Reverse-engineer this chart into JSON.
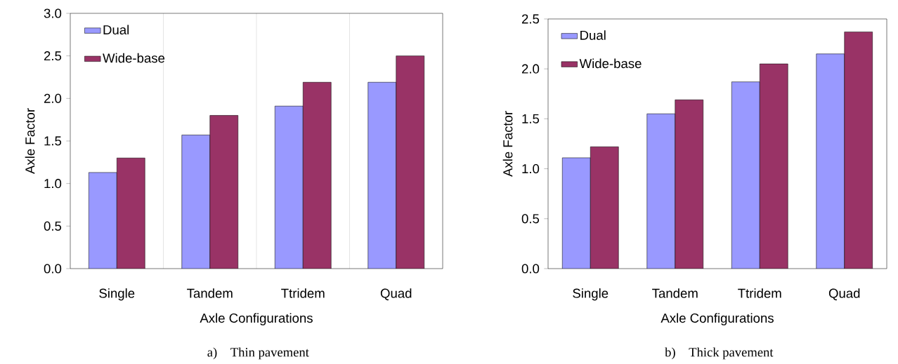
{
  "chart_data": [
    {
      "type": "bar",
      "categories": [
        "Single",
        "Tandem",
        "Ttridem",
        "Quad"
      ],
      "xlabel": "Axle Configurations",
      "ylabel": "Axle Factor",
      "series": [
        {
          "name": "Dual",
          "color": "#9999ff",
          "values": [
            1.13,
            1.57,
            1.91,
            2.19
          ]
        },
        {
          "name": "Wide-base",
          "color": "#993366",
          "values": [
            1.3,
            1.8,
            2.19,
            2.5
          ]
        }
      ],
      "ylim": [
        0,
        3
      ],
      "yticks": [
        {
          "value": 0,
          "label": "0.0"
        },
        {
          "value": 0.5,
          "label": "0.5"
        },
        {
          "value": 1,
          "label": "1.0"
        },
        {
          "value": 1.5,
          "label": "1.5"
        },
        {
          "value": 2,
          "label": "2.0"
        },
        {
          "value": 2.5,
          "label": "2.5"
        },
        {
          "value": 3,
          "label": "3.0"
        }
      ],
      "grid": "x",
      "legend": "top left",
      "annotations": [
        "a)    Thin pavement"
      ]
    },
    {
      "type": "bar",
      "categories": [
        "Single",
        "Tandem",
        "Ttridem",
        "Quad"
      ],
      "xlabel": "Axle Configurations",
      "ylabel": "Axle Factor",
      "series": [
        {
          "name": "Dual",
          "color": "#9999ff",
          "values": [
            1.11,
            1.55,
            1.87,
            2.15
          ]
        },
        {
          "name": "Wide-base",
          "color": "#993366",
          "values": [
            1.22,
            1.69,
            2.05,
            2.37
          ]
        }
      ],
      "ylim": [
        0,
        2.5
      ],
      "yticks": [
        {
          "value": 0,
          "label": "0.0"
        },
        {
          "value": 0.5,
          "label": "0.5"
        },
        {
          "value": 1,
          "label": "1.0"
        },
        {
          "value": 1.5,
          "label": "1.5"
        },
        {
          "value": 2,
          "label": "2.0"
        },
        {
          "value": 2.5,
          "label": "2.5"
        }
      ],
      "legend": "top left",
      "annotations": [
        "b)    Thick pavement"
      ]
    }
  ]
}
